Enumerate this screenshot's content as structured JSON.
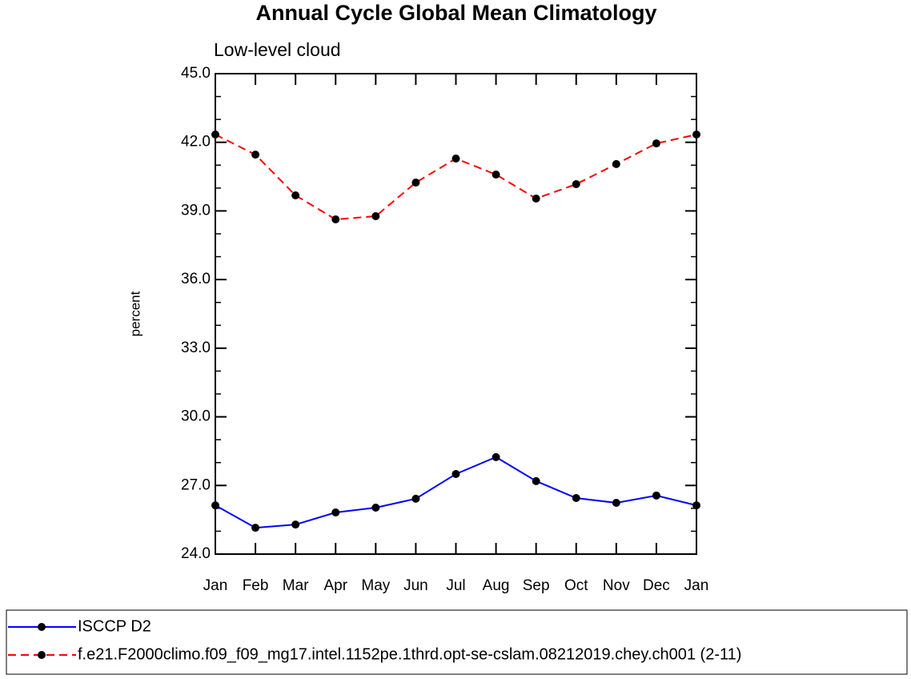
{
  "chart_data": {
    "type": "line",
    "title": "Annual Cycle Global Mean Climatology",
    "subtitle": "Low-level cloud",
    "y_label": "percent",
    "categories": [
      "Jan",
      "Feb",
      "Mar",
      "Apr",
      "May",
      "Jun",
      "Jul",
      "Aug",
      "Sep",
      "Oct",
      "Nov",
      "Dec",
      "Jan"
    ],
    "series": [
      {
        "name": "ISCCP D2",
        "color": "#0000ff",
        "line_style": "solid",
        "marker_color": "#000000",
        "values": [
          26.13,
          25.15,
          25.29,
          25.82,
          26.03,
          26.42,
          27.5,
          28.24,
          27.19,
          26.45,
          26.24,
          26.56,
          26.13
        ]
      },
      {
        "name": "f.e21.F2000climo.f09_f09_mg17.intel.1152pe.1thrd.opt-se-cslam.08212019.chey.ch001 (2-11)",
        "color": "#ff0000",
        "line_style": "dashed",
        "marker_color": "#000000",
        "values": [
          42.34,
          41.46,
          39.68,
          38.63,
          38.77,
          40.24,
          41.29,
          40.59,
          39.54,
          40.17,
          41.05,
          41.95,
          42.34
        ]
      }
    ],
    "ylim": [
      24,
      45
    ],
    "yticks": [
      {
        "value": 24,
        "label": "24.0"
      },
      {
        "value": 27,
        "label": "27.0"
      },
      {
        "value": 30,
        "label": "30.0"
      },
      {
        "value": 33,
        "label": "33.0"
      },
      {
        "value": 36,
        "label": "36.0"
      },
      {
        "value": 39,
        "label": "39.0"
      },
      {
        "value": 42,
        "label": "42.0"
      },
      {
        "value": 45,
        "label": "45.0"
      }
    ],
    "yminor_ticks": [
      25,
      26,
      28,
      29,
      31,
      32,
      34,
      35,
      37,
      38,
      40,
      41,
      43,
      44
    ],
    "grid": false
  }
}
